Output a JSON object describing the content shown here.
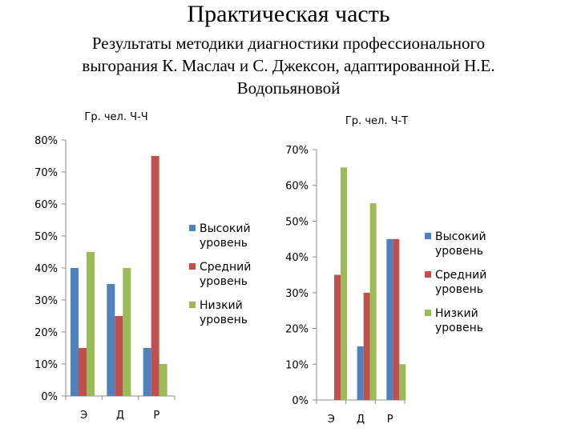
{
  "slide": {
    "title": "Практическая часть",
    "subtitle_lines": [
      "Результаты методики диагностики профессионального",
      "выгорания К. Маслач и С. Джексон, адаптированной Н.Е.",
      "Водопьяновой"
    ]
  },
  "colors": {
    "high": "#4F81BD",
    "medium": "#C0504D",
    "low": "#9BBB59"
  },
  "chart_data": [
    {
      "type": "bar",
      "title": "Гр. чел. Ч-Ч",
      "categories": [
        "Э",
        "Д",
        "Р"
      ],
      "ylim": [
        0,
        80
      ],
      "yticks": [
        0,
        10,
        20,
        30,
        40,
        50,
        60,
        70,
        80
      ],
      "tick_suffix": "%",
      "legend_position": "right",
      "grid": false,
      "series": [
        {
          "name": "Высокий уровень",
          "name_lines": [
            "Высокий",
            "уровень"
          ],
          "color_key": "high",
          "values": [
            40,
            35,
            15
          ]
        },
        {
          "name": "Средний уровень",
          "name_lines": [
            "Средний",
            "уровень"
          ],
          "color_key": "medium",
          "values": [
            15,
            25,
            75
          ]
        },
        {
          "name": "Низкий уровень",
          "name_lines": [
            "Низкий",
            "уровень"
          ],
          "color_key": "low",
          "values": [
            45,
            40,
            10
          ]
        }
      ]
    },
    {
      "type": "bar",
      "title": "Гр. чел. Ч-Т",
      "categories": [
        "Э",
        "Д",
        "Р"
      ],
      "ylim": [
        0,
        70
      ],
      "yticks": [
        0,
        10,
        20,
        30,
        40,
        50,
        60,
        70
      ],
      "tick_suffix": "%",
      "legend_position": "right",
      "grid": false,
      "series": [
        {
          "name": "Высокий уровень",
          "name_lines": [
            "Высокий",
            "уровень"
          ],
          "color_key": "high",
          "values": [
            0,
            15,
            45
          ]
        },
        {
          "name": "Средний уровень",
          "name_lines": [
            "Средний",
            "уровень"
          ],
          "color_key": "medium",
          "values": [
            35,
            30,
            45
          ]
        },
        {
          "name": "Низкий уровень",
          "name_lines": [
            "Низкий",
            "уровень"
          ],
          "color_key": "low",
          "values": [
            65,
            55,
            10
          ]
        }
      ]
    }
  ]
}
